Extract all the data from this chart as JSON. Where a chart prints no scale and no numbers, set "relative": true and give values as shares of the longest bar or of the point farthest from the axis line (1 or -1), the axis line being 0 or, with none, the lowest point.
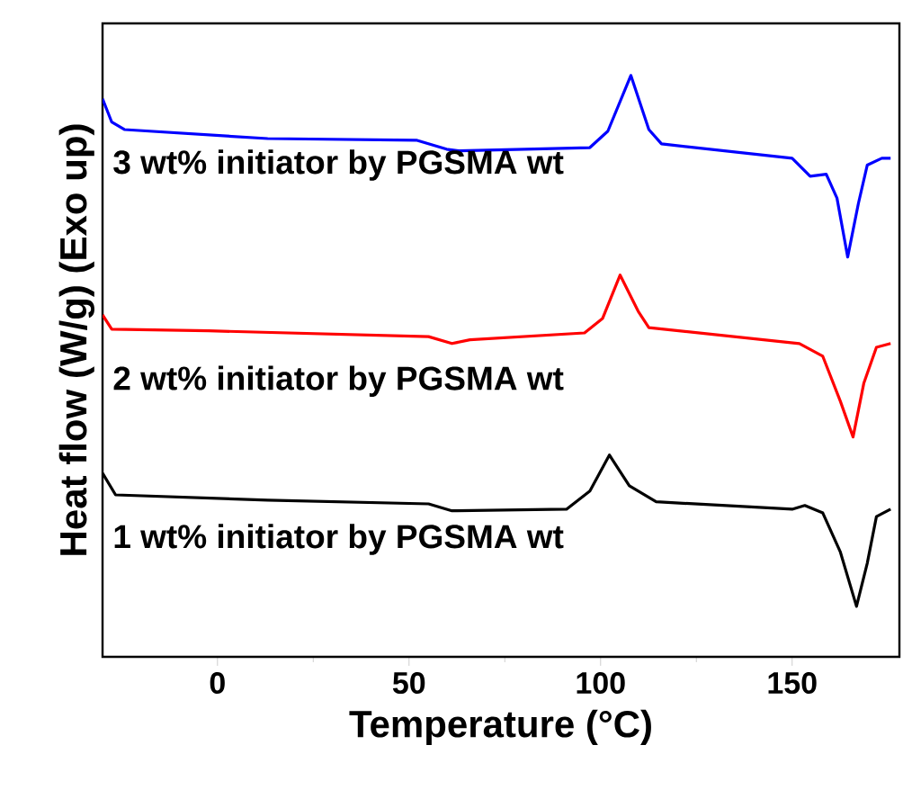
{
  "chart_data": {
    "type": "line",
    "relative": true,
    "xlabel": "Temperature (°C)",
    "ylabel": "Heat flow (W/g) (Exo up)",
    "xlim": [
      -30,
      178
    ],
    "xticks": [
      0,
      50,
      100,
      150
    ],
    "series": [
      {
        "name": "3 wt% initiator by PGSMA wt",
        "color": "#0000ff",
        "x": [
          -30,
          -27.6,
          -24.3,
          13.1,
          51.9,
          59.8,
          63.1,
          97.2,
          101.9,
          107.9,
          112.6,
          115.9,
          150,
          154.7,
          158.9,
          161.7,
          164.5,
          167.3,
          169.6,
          173.4,
          175.7
        ],
        "values": [
          0.956,
          0.912,
          0.898,
          0.881,
          0.878,
          0.861,
          0.858,
          0.864,
          0.895,
          1.0,
          0.898,
          0.871,
          0.844,
          0.81,
          0.814,
          0.769,
          0.658,
          0.759,
          0.831,
          0.844,
          0.844
        ]
      },
      {
        "name": "2 wt% initiator by PGSMA wt",
        "color": "#ff0000",
        "x": [
          -30,
          -27.6,
          -2.3,
          55.1,
          61.2,
          65.9,
          95.8,
          100.5,
          105.1,
          109.8,
          112.6,
          151.9,
          158.0,
          162.6,
          165.9,
          168.7,
          172.0,
          175.7
        ],
        "values": [
          0.549,
          0.522,
          0.519,
          0.508,
          0.495,
          0.502,
          0.515,
          0.542,
          0.624,
          0.556,
          0.525,
          0.495,
          0.471,
          0.386,
          0.319,
          0.42,
          0.488,
          0.495
        ]
      },
      {
        "name": "1 wt% initiator by PGSMA wt",
        "color": "#000000",
        "x": [
          -30,
          -26.6,
          13.1,
          55.1,
          61.2,
          91.1,
          97.2,
          102.3,
          107.5,
          114.5,
          150,
          153.3,
          158.0,
          162.6,
          166.8,
          169.6,
          172.0,
          175.7
        ],
        "values": [
          0.251,
          0.21,
          0.2,
          0.193,
          0.18,
          0.183,
          0.217,
          0.285,
          0.227,
          0.197,
          0.183,
          0.19,
          0.176,
          0.102,
          0.0,
          0.081,
          0.169,
          0.183
        ]
      }
    ]
  }
}
